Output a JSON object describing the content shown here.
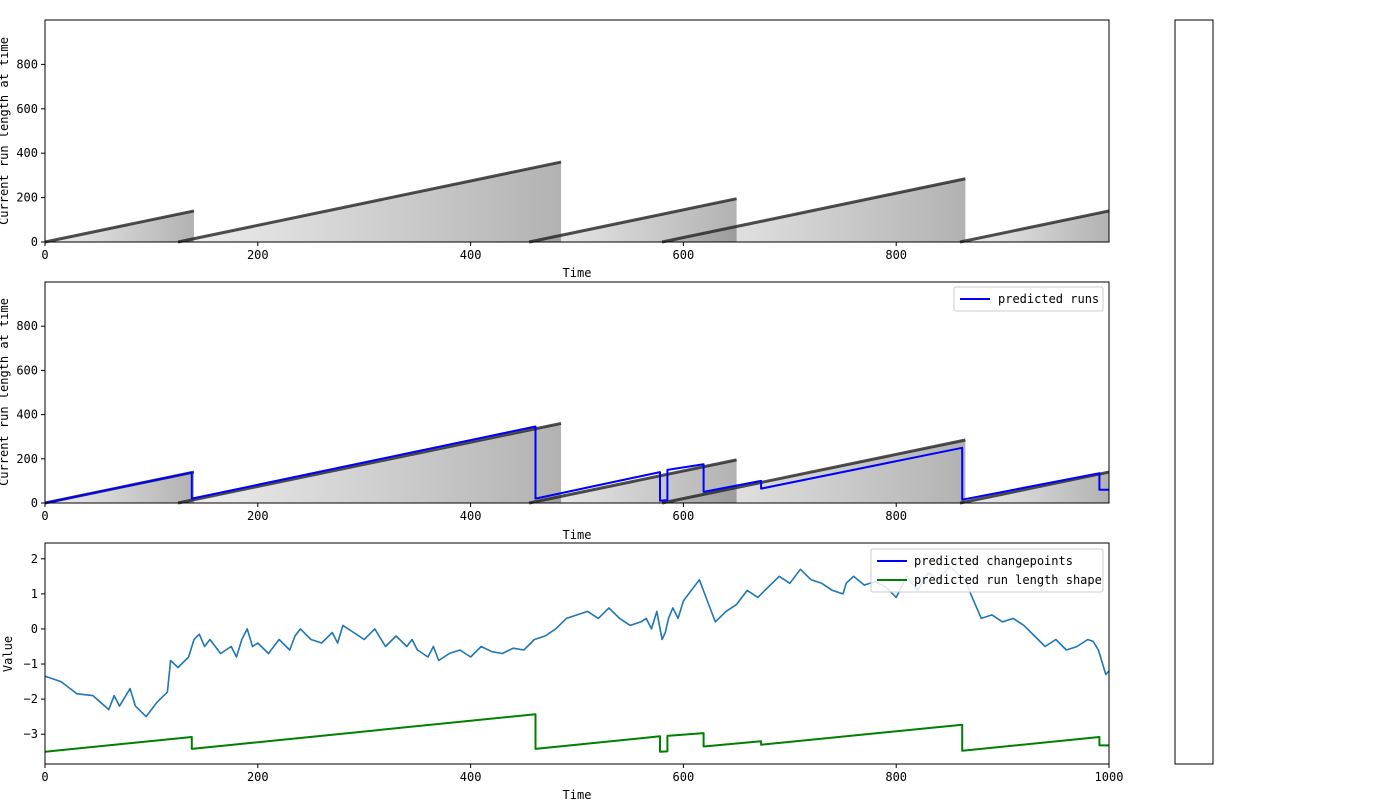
{
  "chart_data": [
    {
      "type": "heatmap",
      "xlabel": "Time",
      "ylabel": "Current run length at time",
      "xlim": [
        0,
        1000
      ],
      "ylim": [
        0,
        1000
      ],
      "xticks": [
        "0",
        "200",
        "400",
        "600",
        "800"
      ],
      "yticks": [
        "0",
        "200",
        "400",
        "600",
        "800"
      ],
      "grid": false,
      "colormap": "gray_r",
      "ridges": [
        {
          "t_start": 0,
          "t_end": 140,
          "r_start": 0,
          "r_end": 140
        },
        {
          "t_start": 125,
          "t_end": 485,
          "r_start": 0,
          "r_end": 360
        },
        {
          "t_start": 455,
          "t_end": 650,
          "r_start": 0,
          "r_end": 195
        },
        {
          "t_start": 580,
          "t_end": 865,
          "r_start": 0,
          "r_end": 285
        },
        {
          "t_start": 860,
          "t_end": 1000,
          "r_start": 0,
          "r_end": 140
        }
      ]
    },
    {
      "type": "line",
      "xlabel": "Time",
      "ylabel": "Current run length at time",
      "xlim": [
        0,
        1000
      ],
      "ylim": [
        0,
        1000
      ],
      "xticks": [
        "0",
        "200",
        "400",
        "600",
        "800"
      ],
      "yticks": [
        "0",
        "200",
        "400",
        "600",
        "800"
      ],
      "grid": false,
      "legend_position": "upper right",
      "series": [
        {
          "name": "predicted runs",
          "color": "#0000ff",
          "x": [
            0,
            138,
            138,
            461,
            461,
            578,
            578,
            585,
            585,
            619,
            619,
            673,
            673,
            862,
            862,
            991,
            991,
            1000
          ],
          "y": [
            0,
            138,
            20,
            346,
            20,
            140,
            10,
            13,
            150,
            175,
            50,
            100,
            65,
            250,
            15,
            135,
            60,
            60
          ]
        }
      ]
    },
    {
      "type": "line",
      "xlabel": "Time",
      "ylabel": "Value",
      "xlim": [
        0,
        1000
      ],
      "ylim": [
        -3.85,
        2.45
      ],
      "xticks": [
        "0",
        "200",
        "400",
        "600",
        "800",
        "1000"
      ],
      "yticks": [
        "2",
        "1",
        "0",
        "−1",
        "−2",
        "−3"
      ],
      "grid": false,
      "legend_position": "upper right",
      "series": [
        {
          "name": "",
          "color": "#1f77b4",
          "x": [
            0,
            15,
            30,
            45,
            60,
            65,
            70,
            80,
            85,
            95,
            105,
            115,
            118,
            125,
            135,
            140,
            145,
            150,
            155,
            165,
            175,
            180,
            185,
            190,
            195,
            200,
            210,
            220,
            230,
            235,
            240,
            250,
            260,
            270,
            275,
            280,
            290,
            300,
            310,
            320,
            330,
            340,
            345,
            350,
            360,
            365,
            370,
            380,
            390,
            400,
            410,
            420,
            430,
            440,
            450,
            460,
            470,
            480,
            490,
            500,
            510,
            520,
            530,
            540,
            550,
            560,
            565,
            570,
            575,
            580,
            583,
            586,
            590,
            595,
            600,
            610,
            615,
            620,
            630,
            640,
            650,
            660,
            670,
            680,
            690,
            700,
            710,
            720,
            730,
            740,
            750,
            753,
            760,
            770,
            780,
            790,
            800,
            810,
            820,
            830,
            840,
            850,
            860,
            865,
            870,
            880,
            890,
            900,
            910,
            920,
            930,
            940,
            950,
            960,
            970,
            980,
            985,
            990,
            993,
            997,
            1000
          ],
          "y": [
            -1.35,
            -1.5,
            -1.85,
            -1.9,
            -2.3,
            -1.9,
            -2.2,
            -1.7,
            -2.2,
            -2.5,
            -2.1,
            -1.8,
            -0.9,
            -1.1,
            -0.8,
            -0.3,
            -0.15,
            -0.5,
            -0.3,
            -0.7,
            -0.5,
            -0.8,
            -0.3,
            0.0,
            -0.5,
            -0.4,
            -0.7,
            -0.3,
            -0.6,
            -0.2,
            0.0,
            -0.3,
            -0.4,
            -0.1,
            -0.4,
            0.1,
            -0.1,
            -0.3,
            0.0,
            -0.5,
            -0.2,
            -0.5,
            -0.3,
            -0.6,
            -0.8,
            -0.5,
            -0.9,
            -0.7,
            -0.6,
            -0.8,
            -0.5,
            -0.65,
            -0.7,
            -0.55,
            -0.6,
            -0.3,
            -0.2,
            0.0,
            0.3,
            0.4,
            0.5,
            0.3,
            0.6,
            0.3,
            0.1,
            0.2,
            0.3,
            0.0,
            0.5,
            -0.3,
            -0.1,
            0.3,
            0.6,
            0.3,
            0.8,
            1.2,
            1.4,
            1.0,
            0.2,
            0.5,
            0.7,
            1.1,
            0.9,
            1.2,
            1.5,
            1.3,
            1.7,
            1.4,
            1.3,
            1.1,
            1.0,
            1.3,
            1.5,
            1.25,
            1.35,
            1.2,
            0.9,
            1.5,
            1.1,
            1.6,
            1.4,
            1.8,
            1.5,
            1.4,
            1.0,
            0.3,
            0.4,
            0.2,
            0.3,
            0.1,
            -0.2,
            -0.5,
            -0.3,
            -0.6,
            -0.5,
            -0.3,
            -0.35,
            -0.6,
            -0.9,
            -1.3,
            -1.2
          ]
        },
        {
          "name": "predicted changepoints",
          "color": "#0000ff",
          "x": [],
          "y": []
        },
        {
          "name": "predicted run length shape",
          "color": "#008000",
          "x": [
            0,
            138,
            138,
            461,
            461,
            578,
            578,
            585,
            585,
            619,
            619,
            673,
            673,
            862,
            862,
            991,
            991,
            1000
          ],
          "y": [
            -3.5,
            -3.08,
            -3.42,
            -2.43,
            -3.42,
            -3.06,
            -3.5,
            -3.49,
            -3.05,
            -2.97,
            -3.35,
            -3.2,
            -3.3,
            -2.73,
            -3.47,
            -3.08,
            -3.32,
            -3.32
          ]
        }
      ]
    }
  ]
}
